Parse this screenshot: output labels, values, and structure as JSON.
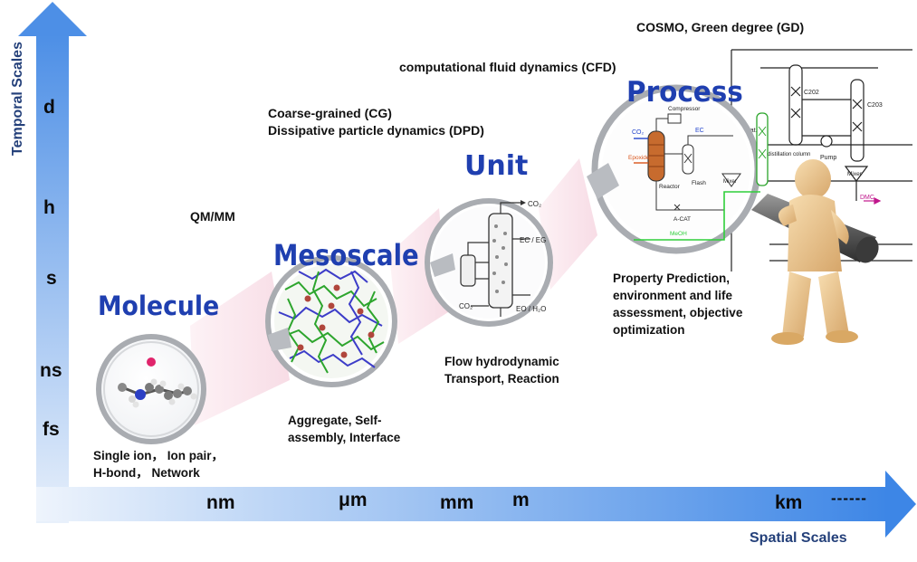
{
  "axes": {
    "temporal_label": "Temporal Scales",
    "spatial_label": "Spatial Scales",
    "temporal_ticks": [
      "d",
      "h",
      "s",
      "ns",
      "fs"
    ],
    "spatial_ticks": [
      "nm",
      "μm",
      "mm",
      "m",
      "km"
    ],
    "spatial_continuation": "------"
  },
  "stages": {
    "molecule": {
      "title": "Molecule",
      "desc_line1": "Single ion， Ion pair，",
      "desc_line2": "H-bond， Network"
    },
    "mesoscale": {
      "title": "Mesoscale",
      "method": "QM/MM",
      "desc_line1": "Aggregate, Self-",
      "desc_line2": "assembly, Interface"
    },
    "unit": {
      "title": "Unit",
      "method_line1": "Coarse-grained (CG)",
      "method_line2": "Dissipative particle dynamics (DPD)",
      "desc_line1": "Flow hydrodynamic",
      "desc_line2": "Transport, Reaction",
      "column_labels": {
        "co2_top": "CO₂",
        "ec_eg": "EC / EG",
        "co2_left": "CO₂",
        "eo_h2o": "EO / H₂O"
      }
    },
    "process": {
      "title": "Process",
      "method_cfd": "computational fluid dynamics (CFD)",
      "method_cosmo": "COSMO, Green degree (GD)",
      "desc_line1": "Property Prediction,",
      "desc_line2": "environment and life",
      "desc_line3": "assessment, objective",
      "desc_line4": "optimization",
      "flowsheet_labels": {
        "co2": "CO₂",
        "epoxide": "Epoxide",
        "compressor": "Compressor",
        "ec": "EC",
        "reactor": "Reactor",
        "flash": "Flash",
        "acat": "A-CAT",
        "meoh": "MeOH",
        "mixer1": "Mixer",
        "mixer2": "Mixer",
        "ec_cat": "EC,Cat.",
        "distillation": "distillation column",
        "pump": "Pump",
        "c202": "C202",
        "c203": "C203",
        "dmc": "DMC"
      }
    }
  },
  "colors": {
    "axis_blue": "#5c9be8",
    "title_blue": "#1f3fb0",
    "axis_label_navy": "#24407a"
  }
}
